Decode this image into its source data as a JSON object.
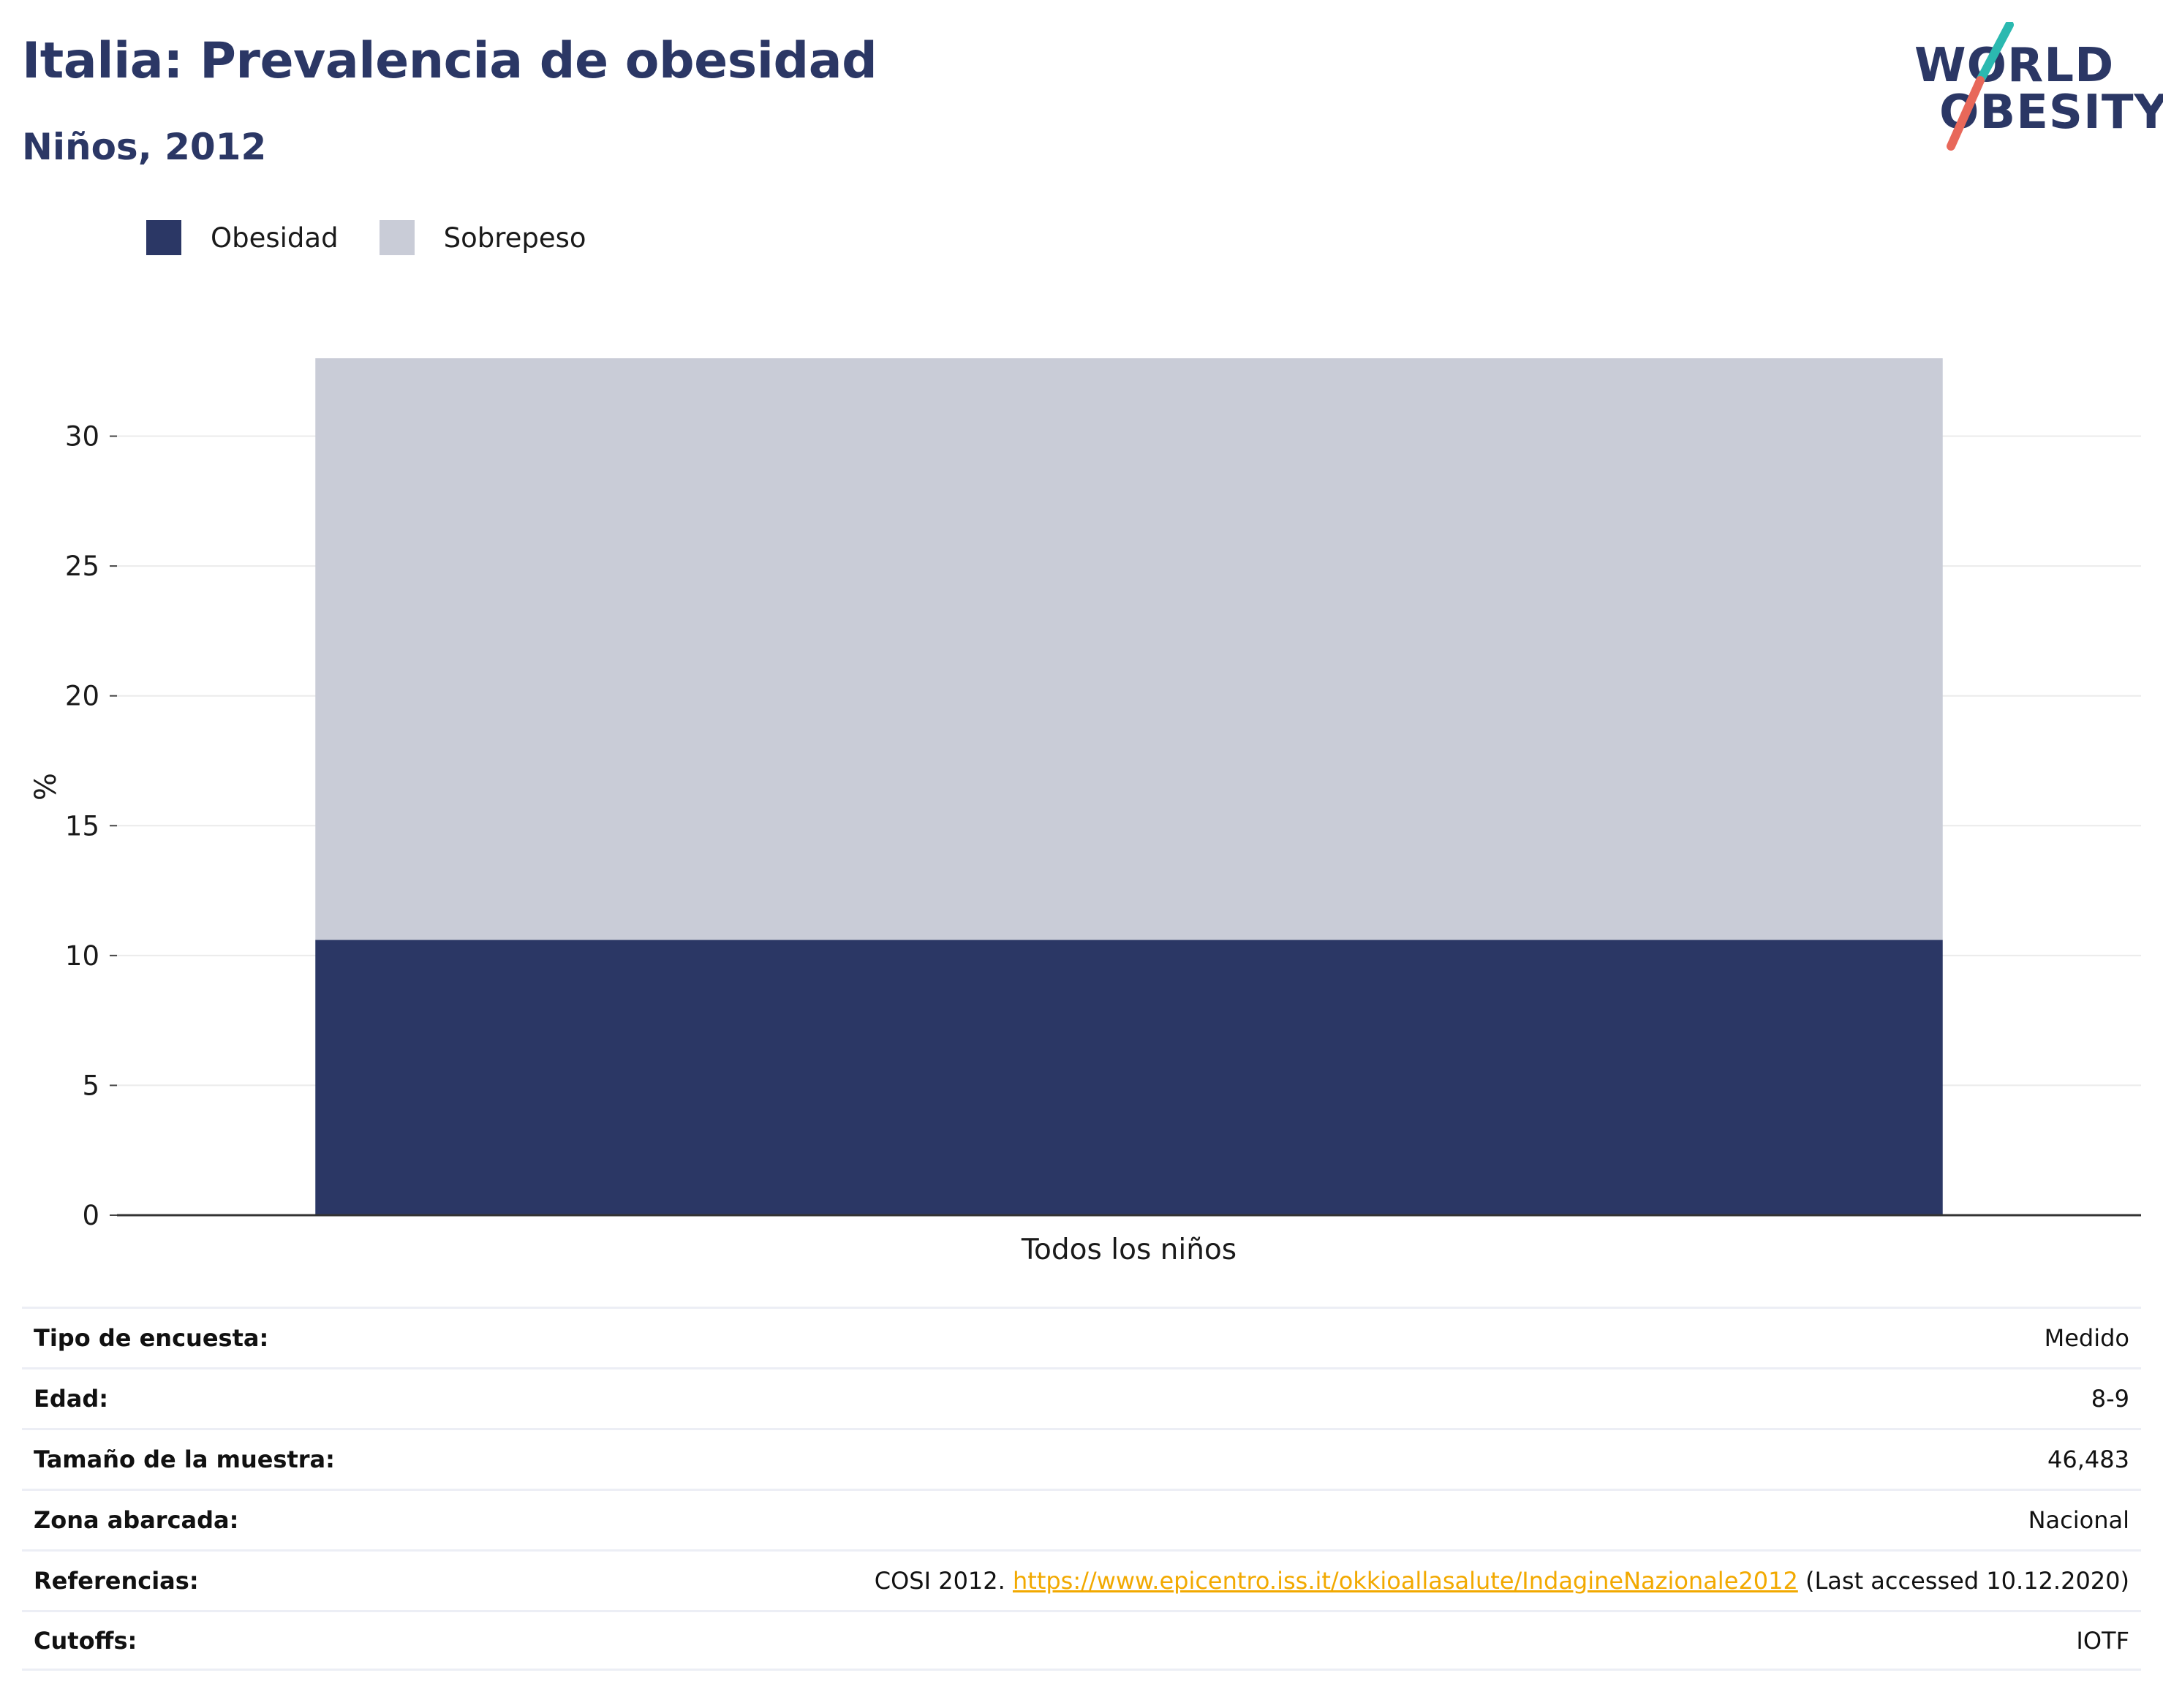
{
  "header": {
    "title": "Italia: Prevalencia de obesidad",
    "subtitle": "Niños, 2012"
  },
  "logo": {
    "line1": "WORLD",
    "line2": "OBESITY",
    "colors": {
      "text": "#2b3765",
      "slash_top": "#2bb9b0",
      "slash_bottom": "#e8685a"
    }
  },
  "legend": [
    {
      "label": "Obesidad",
      "color": "#2b3765"
    },
    {
      "label": "Sobrepeso",
      "color": "#c9ccd7"
    }
  ],
  "chart_data": {
    "type": "bar",
    "stacked": true,
    "categories": [
      "Todos los niños"
    ],
    "series": [
      {
        "name": "Obesidad",
        "values": [
          10.6
        ],
        "color": "#2b3765"
      },
      {
        "name": "Sobrepeso",
        "values": [
          22.4
        ],
        "color": "#c9ccd7"
      }
    ],
    "title": "Italia: Prevalencia de obesidad",
    "subtitle": "Niños, 2012",
    "xlabel": "",
    "ylabel": "%",
    "ylim": [
      0,
      33
    ],
    "yticks": [
      0,
      5,
      10,
      15,
      20,
      25,
      30
    ],
    "grid": true,
    "legend_position": "top-left"
  },
  "info": {
    "rows": [
      {
        "key": "Tipo de encuesta:",
        "value": "Medido"
      },
      {
        "key": "Edad:",
        "value": "8-9"
      },
      {
        "key": "Tamaño de la muestra:",
        "value": "46,483"
      },
      {
        "key": "Zona abarcada:",
        "value": "Nacional"
      },
      {
        "key": "Referencias:",
        "value_prefix": "COSI 2012. ",
        "link": "https://www.epicentro.iss.it/okkioallasalute/IndagineNazionale2012",
        "value_suffix": " (Last accessed 10.12.2020)"
      },
      {
        "key": "Cutoffs:",
        "value": "IOTF"
      }
    ]
  }
}
